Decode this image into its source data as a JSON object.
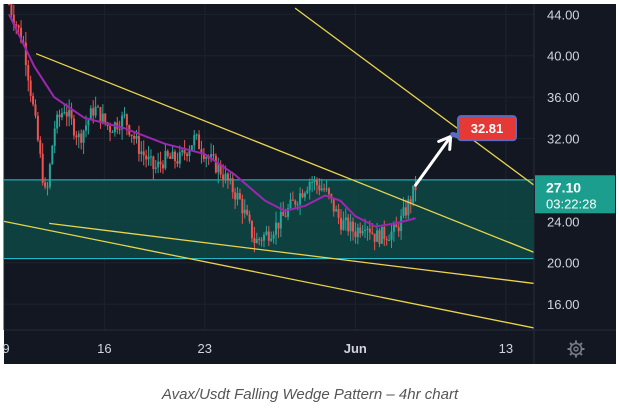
{
  "caption": "Avax/Usdt Falling Wedge Pattern – 4hr chart",
  "colors": {
    "background": "#131722",
    "candle_up": "#26a69a",
    "candle_down": "#ef5350",
    "ma_line": "#9c27b0",
    "zone_fill": "#0d4f4a",
    "zone_line": "#26c6da",
    "wedge_line": "#e8d44d",
    "arrow": "#ffffff",
    "target_label": "#e53935",
    "price_label": "#1b9e8d"
  },
  "icons": {
    "settings": "gear-icon"
  },
  "chart_data": {
    "type": "line",
    "title": "",
    "xlabel": "",
    "ylabel": "",
    "ylim": [
      13.5,
      45
    ],
    "y_ticks": [
      16,
      20,
      24,
      28,
      32,
      36,
      40,
      44
    ],
    "y_tick_labels": [
      "16.00",
      "20.00",
      "24.00",
      "",
      "32.00",
      "36.00",
      "40.00",
      "44.00"
    ],
    "x_ticks": [
      {
        "x": 0,
        "label": "9",
        "bold": false
      },
      {
        "x": 1,
        "label": "16",
        "bold": false
      },
      {
        "x": 2,
        "label": "23",
        "bold": false
      },
      {
        "x": 3.5,
        "label": "Jun",
        "bold": true
      },
      {
        "x": 5,
        "label": "13",
        "bold": false
      }
    ],
    "xlim": [
      0,
      5.28
    ],
    "price_label": {
      "value": "27.10",
      "y": 27.1
    },
    "countdown_label": "03:22:28",
    "target": {
      "label": "32.81",
      "value": 32.81
    },
    "zone": {
      "top": 28.0,
      "bottom": 20.4
    },
    "price": {
      "x": [
        0.05,
        0.2,
        0.32,
        0.42,
        0.5,
        0.6,
        0.75,
        0.9,
        1.05,
        1.2,
        1.35,
        1.5,
        1.6,
        1.75,
        1.9,
        2.05,
        2.15,
        2.35,
        2.5,
        2.65,
        2.75,
        2.9,
        3.05,
        3.2,
        3.35,
        3.5,
        3.6,
        3.7,
        3.9,
        4.0,
        4.1
      ],
      "values": [
        45,
        41,
        33,
        26,
        33,
        35,
        32,
        35,
        33,
        34,
        31,
        29,
        30,
        30,
        32,
        30,
        29,
        26,
        22,
        23,
        24,
        26,
        28,
        27,
        24,
        23,
        24,
        22.5,
        23,
        25,
        27.3
      ]
    },
    "ma": {
      "x": [
        0.05,
        0.3,
        0.5,
        0.8,
        1.2,
        1.6,
        2.0,
        2.3,
        2.6,
        2.8,
        3.0,
        3.2,
        3.35,
        3.5,
        3.7,
        3.9,
        4.1
      ],
      "values": [
        44,
        39,
        36,
        34,
        33,
        31.5,
        30.5,
        28.5,
        26,
        25,
        25.5,
        26.5,
        26,
        24.5,
        23.5,
        23.8,
        24.3
      ]
    },
    "wedge_lines": [
      {
        "x": [
          0.32,
          5.28
        ],
        "values": [
          40.2,
          21.0
        ]
      },
      {
        "x": [
          0.45,
          5.28
        ],
        "values": [
          23.8,
          18.0
        ]
      },
      {
        "x": [
          0,
          5.28
        ],
        "values": [
          24.0,
          13.7
        ]
      },
      {
        "x": [
          2.9,
          5.28
        ],
        "values": [
          44.6,
          27.5
        ]
      }
    ],
    "projection": {
      "x": [
        4.1,
        4.45
      ],
      "values": [
        27.5,
        32.2
      ]
    }
  }
}
